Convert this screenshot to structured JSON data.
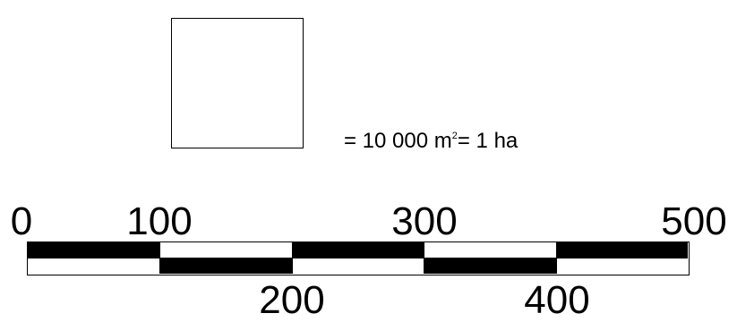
{
  "area_reference": {
    "equation_prefix": "= 10 000 m",
    "equation_exponent": "2",
    "equation_suffix": "= 1 ha"
  },
  "scale_bar": {
    "colors": {
      "dark": "#000000",
      "light": "#ffffff"
    },
    "segments": [
      {
        "from": 0,
        "to": 100,
        "top": "dark",
        "bottom": "light"
      },
      {
        "from": 100,
        "to": 200,
        "top": "light",
        "bottom": "dark"
      },
      {
        "from": 200,
        "to": 300,
        "top": "dark",
        "bottom": "light"
      },
      {
        "from": 300,
        "to": 400,
        "top": "light",
        "bottom": "dark"
      },
      {
        "from": 400,
        "to": 500,
        "top": "dark",
        "bottom": "light"
      }
    ],
    "labels_above": [
      "0",
      "100",
      "300",
      "500"
    ],
    "labels_below": [
      "200",
      "400"
    ],
    "max": 500
  }
}
